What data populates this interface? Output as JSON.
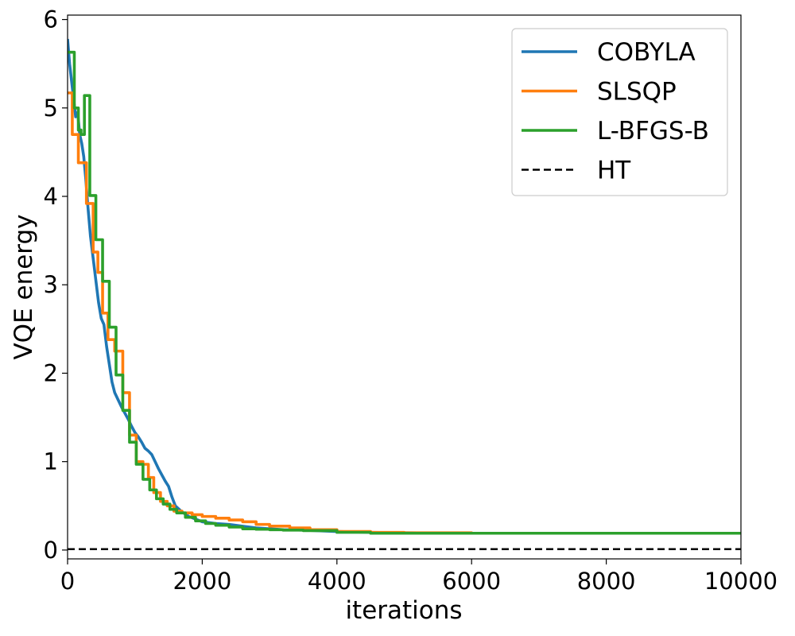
{
  "chart_data": {
    "type": "line",
    "title": "",
    "xlabel": "iterations",
    "ylabel": "VQE energy",
    "xlim": [
      0,
      10000
    ],
    "ylim": [
      -0.1,
      6.05
    ],
    "xticks": [
      0,
      2000,
      4000,
      6000,
      8000,
      10000
    ],
    "yticks": [
      0,
      1,
      2,
      3,
      4,
      5,
      6
    ],
    "grid": false,
    "legend": {
      "position": "top-right"
    },
    "series": [
      {
        "name": "COBYLA",
        "color": "#1f77b4",
        "style": "solid",
        "x": [
          0,
          30,
          60,
          90,
          120,
          150,
          180,
          210,
          240,
          270,
          300,
          340,
          380,
          420,
          460,
          500,
          540,
          580,
          620,
          660,
          700,
          750,
          800,
          850,
          900,
          950,
          1000,
          1050,
          1100,
          1150,
          1200,
          1250,
          1300,
          1350,
          1400,
          1450,
          1500,
          1550,
          1600,
          1700,
          1800,
          1900,
          2000,
          2200,
          2400,
          2600,
          2800,
          3000,
          3200,
          3500,
          4000,
          4500,
          5000,
          6000,
          7000,
          8000,
          9000,
          10000
        ],
        "y": [
          5.78,
          5.5,
          5.3,
          5.1,
          4.9,
          4.95,
          4.7,
          4.6,
          4.45,
          4.2,
          3.9,
          3.55,
          3.3,
          3.05,
          2.8,
          2.62,
          2.55,
          2.3,
          2.1,
          1.9,
          1.78,
          1.7,
          1.62,
          1.55,
          1.48,
          1.4,
          1.33,
          1.28,
          1.22,
          1.15,
          1.12,
          1.08,
          1.0,
          0.92,
          0.85,
          0.78,
          0.72,
          0.6,
          0.5,
          0.43,
          0.38,
          0.35,
          0.32,
          0.3,
          0.29,
          0.27,
          0.25,
          0.24,
          0.23,
          0.225,
          0.21,
          0.2,
          0.195,
          0.19,
          0.19,
          0.19,
          0.19,
          0.19
        ]
      },
      {
        "name": "SLSQP",
        "color": "#ff7f0e",
        "style": "steps",
        "x": [
          0,
          70,
          160,
          280,
          380,
          450,
          520,
          600,
          700,
          820,
          920,
          1020,
          1120,
          1200,
          1280,
          1380,
          1480,
          1580,
          1700,
          1850,
          2000,
          2200,
          2400,
          2600,
          2800,
          3000,
          3300,
          3600,
          4000,
          4500,
          5000,
          6000,
          7000,
          8000,
          9000,
          10000
        ],
        "y": [
          5.17,
          4.7,
          4.38,
          3.92,
          3.37,
          3.14,
          2.68,
          2.38,
          2.25,
          1.78,
          1.3,
          1.0,
          0.97,
          0.82,
          0.65,
          0.55,
          0.5,
          0.44,
          0.42,
          0.4,
          0.38,
          0.36,
          0.34,
          0.32,
          0.29,
          0.27,
          0.25,
          0.23,
          0.21,
          0.2,
          0.195,
          0.19,
          0.19,
          0.19,
          0.19,
          0.19
        ]
      },
      {
        "name": "L-BFGS-B",
        "color": "#2ca02c",
        "style": "steps",
        "x": [
          0,
          100,
          160,
          200,
          250,
          330,
          420,
          520,
          620,
          720,
          820,
          920,
          1020,
          1120,
          1220,
          1320,
          1420,
          1520,
          1620,
          1750,
          1900,
          2050,
          2200,
          2400,
          2600,
          2800,
          3000,
          3200,
          3500,
          4000,
          4500,
          5000,
          6000,
          7000,
          8000,
          9000,
          10000
        ],
        "y": [
          5.63,
          5.0,
          4.75,
          4.7,
          5.14,
          4.01,
          3.51,
          3.04,
          2.52,
          1.98,
          1.58,
          1.22,
          0.97,
          0.8,
          0.68,
          0.58,
          0.52,
          0.46,
          0.42,
          0.37,
          0.33,
          0.3,
          0.28,
          0.26,
          0.24,
          0.235,
          0.23,
          0.225,
          0.22,
          0.2,
          0.19,
          0.19,
          0.19,
          0.19,
          0.19,
          0.19,
          0.19
        ]
      },
      {
        "name": "HT",
        "color": "#000000",
        "style": "dashed",
        "x": [
          0,
          10000
        ],
        "y": [
          0.01,
          0.01
        ]
      }
    ]
  }
}
